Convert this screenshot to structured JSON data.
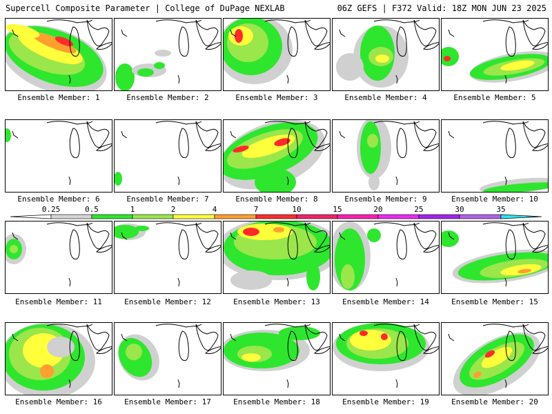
{
  "header": {
    "left": "Supercell Composite Parameter | College of DuPage NEXLAB",
    "right": "06Z GEFS | F372 Valid: 18Z MON JUN 23 2025"
  },
  "legend": {
    "ticks": [
      "0.25",
      "0.5",
      "1",
      "2",
      "4",
      "7",
      "10",
      "15",
      "20",
      "25",
      "30",
      "35"
    ],
    "colors": [
      "#d4d4d4",
      "#2ee62e",
      "#9be64b",
      "#ffff3c",
      "#ff9f2f",
      "#ff2b2b",
      "#f02268",
      "#ff1eb0",
      "#ee28f0",
      "#a024f0",
      "#b062e6",
      "#29e6f0"
    ]
  },
  "members": [
    {
      "caption": "Ensemble Member: 1"
    },
    {
      "caption": "Ensemble Member: 2"
    },
    {
      "caption": "Ensemble Member: 3"
    },
    {
      "caption": "Ensemble Member: 4"
    },
    {
      "caption": "Ensemble Member: 5"
    },
    {
      "caption": "Ensemble Member: 6"
    },
    {
      "caption": "Ensemble Member: 7"
    },
    {
      "caption": "Ensemble Member: 8"
    },
    {
      "caption": "Ensemble Member: 9"
    },
    {
      "caption": "Ensemble Member: 10"
    },
    {
      "caption": "Ensemble Member: 11"
    },
    {
      "caption": "Ensemble Member: 12"
    },
    {
      "caption": "Ensemble Member: 13"
    },
    {
      "caption": "Ensemble Member: 14"
    },
    {
      "caption": "Ensemble Member: 15"
    },
    {
      "caption": "Ensemble Member: 16"
    },
    {
      "caption": "Ensemble Member: 17"
    },
    {
      "caption": "Ensemble Member: 18"
    },
    {
      "caption": "Ensemble Member: 19"
    },
    {
      "caption": "Ensemble Member: 20"
    }
  ]
}
